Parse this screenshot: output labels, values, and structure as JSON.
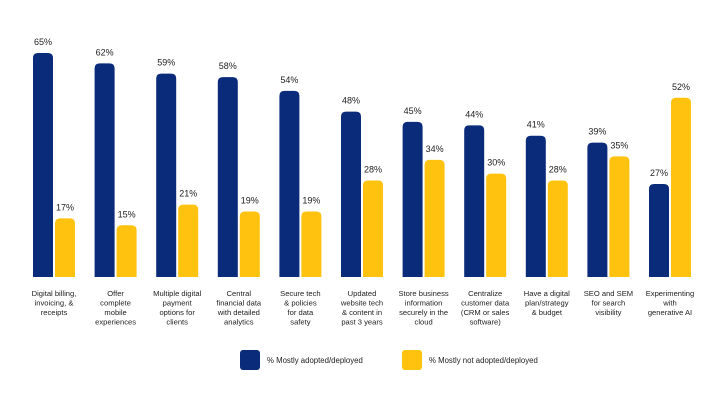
{
  "chart_data": {
    "type": "bar",
    "categories": [
      "Digital billing, invoicing, & receipts",
      "Offer complete mobile experiences",
      "Multiple digital payment options for clients",
      "Central financial data with detailed analytics",
      "Secure tech & policies for data safety",
      "Updated website tech & content in past 3 years",
      "Store business information securely in the cloud",
      "Centralize customer data (CRM or sales software)",
      "Have a digital plan/strategy & budget",
      "SEO and SEM for search visibility",
      "Experimenting with generative AI"
    ],
    "category_lines": [
      [
        "Digital billing,",
        "invoicing, &",
        "receipts"
      ],
      [
        "Offer",
        "complete",
        "mobile",
        "experiences"
      ],
      [
        "Multiple digital",
        "payment",
        "options for",
        "clients"
      ],
      [
        "Central",
        "financial data",
        "with detailed",
        "analytics"
      ],
      [
        "Secure tech",
        "& policies",
        "for data",
        "safety"
      ],
      [
        "Updated",
        "website tech",
        "& content in",
        "past 3 years"
      ],
      [
        "Store business",
        "information",
        "securely in the",
        "cloud"
      ],
      [
        "Centralize",
        "customer data",
        "(CRM or sales",
        "software)"
      ],
      [
        "Have a digital",
        "plan/strategy",
        "& budget"
      ],
      [
        "SEO and SEM",
        "for search",
        "visibility"
      ],
      [
        "Experimenting",
        "with",
        "generative AI"
      ]
    ],
    "series": [
      {
        "name": "% Mostly adopted/deployed",
        "color": "#0A2A7A",
        "values": [
          65,
          62,
          59,
          58,
          54,
          48,
          45,
          44,
          41,
          39,
          27
        ],
        "labels": [
          "65%",
          "62%",
          "59%",
          "58%",
          "54%",
          "48%",
          "45%",
          "44%",
          "41%",
          "39%",
          "27%"
        ]
      },
      {
        "name": "% Mostly not adopted/deployed",
        "color": "#FFC20E",
        "values": [
          17,
          15,
          21,
          19,
          19,
          28,
          34,
          30,
          28,
          35,
          52
        ],
        "labels": [
          "17%",
          "15%",
          "21%",
          "19%",
          "19%",
          "28%",
          "34%",
          "30%",
          "28%",
          "35%",
          "52%"
        ]
      }
    ],
    "ylim": [
      0,
      65
    ],
    "grid": false,
    "legend": "bottom"
  }
}
